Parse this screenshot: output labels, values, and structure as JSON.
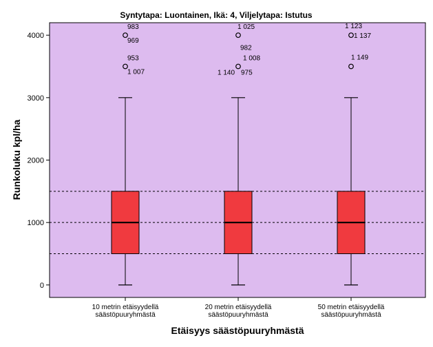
{
  "chart_data": {
    "type": "boxplot",
    "title": "Syntytapa: Luontainen, Ikä: 4, Viljelytapa: Istutus",
    "xlabel": "Etäisyys säästöpuuryhmästä",
    "ylabel": "Runkoluku kpl/ha",
    "ylim": [
      -200,
      4200
    ],
    "yticks": [
      "0",
      "1000",
      "2000",
      "3000",
      "4000"
    ],
    "reference_lines": [
      500,
      1000,
      1500
    ],
    "colors": {
      "plot_bg": "#ddbbef",
      "box_fill": "#f03a3f",
      "stroke": "#000000"
    },
    "categories": [
      {
        "label_lines": [
          "10 metrin etäisyydellä",
          "säästöpuuryhmästä"
        ],
        "min": 0,
        "q1": 500,
        "median": 1000,
        "q3": 1500,
        "max": 3000,
        "outliers": [
          {
            "value": 4000,
            "labels": [
              "983",
              "969"
            ]
          },
          {
            "value": 3500,
            "labels": [
              "953",
              "1 007"
            ]
          }
        ]
      },
      {
        "label_lines": [
          "20 metrin etäisyydellä",
          "säästöpuuryhmästä"
        ],
        "min": 0,
        "q1": 500,
        "median": 1000,
        "q3": 1500,
        "max": 3000,
        "outliers": [
          {
            "value": 4000,
            "labels": [
              "1 025"
            ]
          },
          {
            "value": 3500,
            "labels": [
              "982",
              "1 008",
              "1 140",
              "975"
            ]
          }
        ]
      },
      {
        "label_lines": [
          "50 metrin etäisyydellä",
          "säästöpuuryhmästä"
        ],
        "min": 0,
        "q1": 500,
        "median": 1000,
        "q3": 1500,
        "max": 3000,
        "outliers": [
          {
            "value": 4000,
            "labels": [
              "1 123",
              "1 137"
            ]
          },
          {
            "value": 3500,
            "labels": [
              "1 149"
            ]
          }
        ]
      }
    ]
  }
}
